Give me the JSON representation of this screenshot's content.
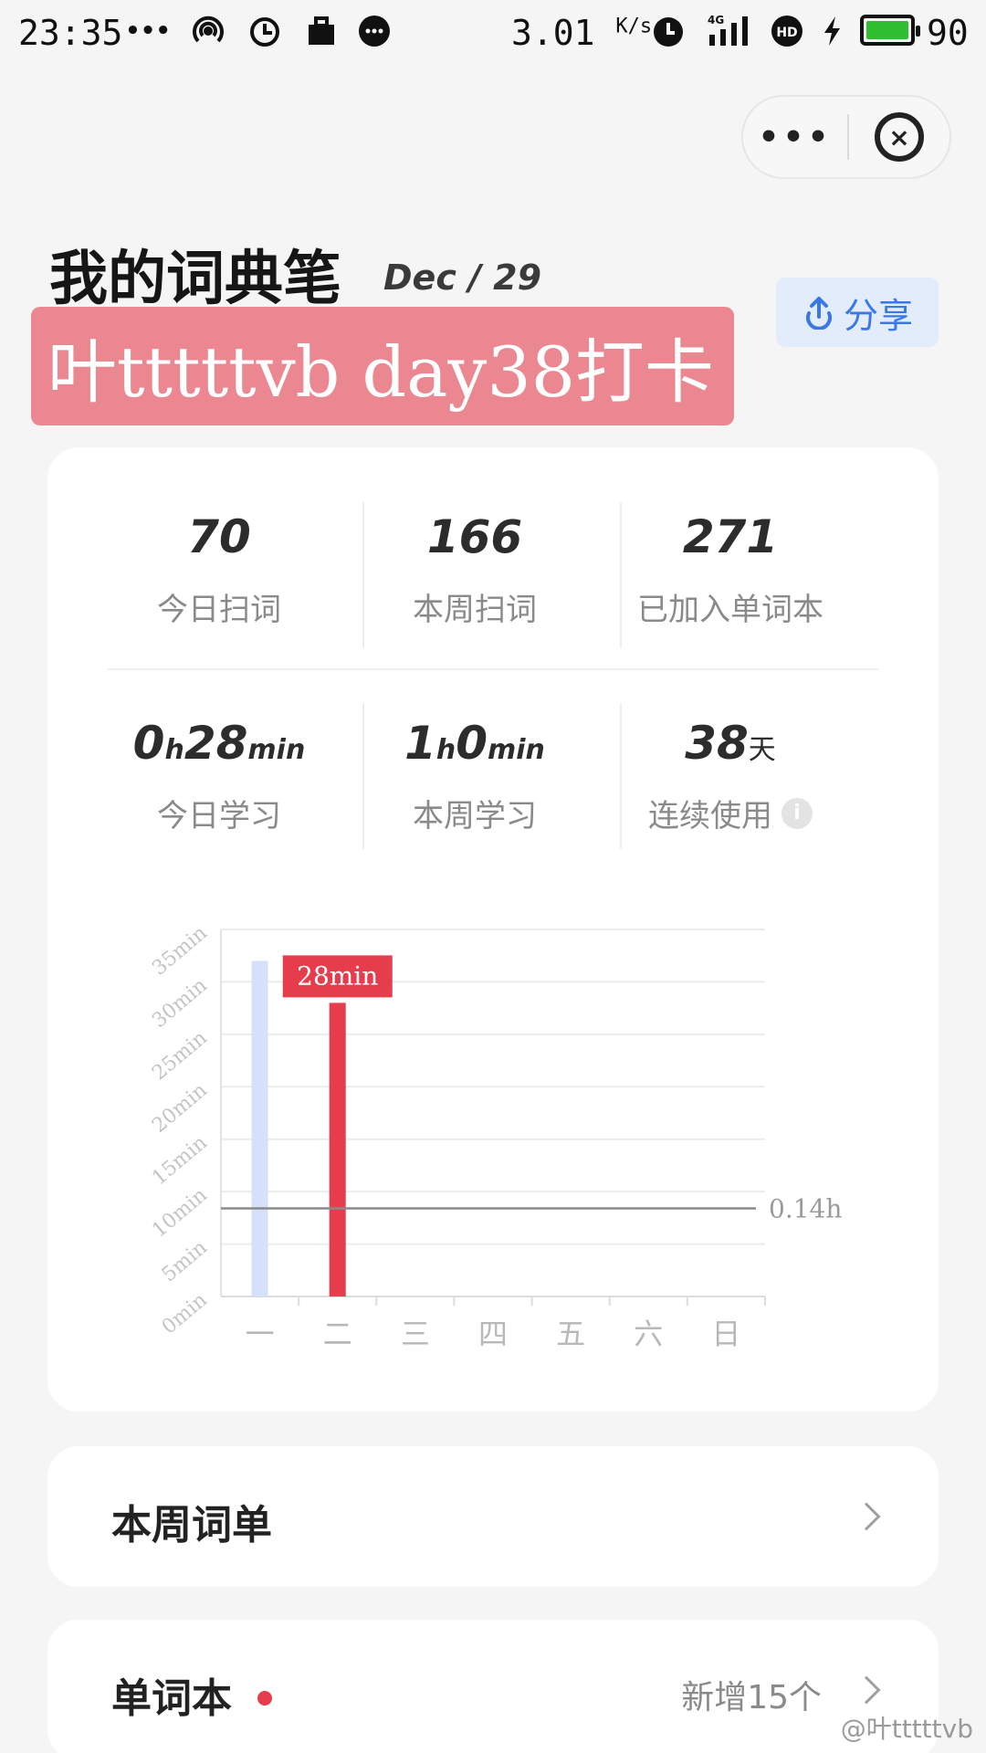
{
  "status_bar": {
    "time": "23:35",
    "dots": "•••",
    "speed": "3.01",
    "speed_unit": "K/s",
    "network": "4G",
    "battery": "90",
    "icons": [
      "hotspot-icon",
      "alarm-clock-icon",
      "briefcase-icon",
      "chat-bubble-icon",
      "alarm-icon",
      "signal-icon",
      "hd-icon",
      "charging-icon",
      "battery-icon"
    ]
  },
  "capsule": {
    "more": "•••",
    "close": "×"
  },
  "header": {
    "title": "我的词典笔",
    "date": "Dec / 29",
    "banner": "叶tttttvb day38打卡",
    "share_label": "分享"
  },
  "stats": [
    {
      "value": "70",
      "label": "今日扫词"
    },
    {
      "value": "166",
      "label": "本周扫词"
    },
    {
      "value": "271",
      "label": "已加入单词本"
    }
  ],
  "time_stats": [
    {
      "h": "0",
      "m": "28",
      "h_unit": "h",
      "m_unit": "min",
      "label": "今日学习"
    },
    {
      "h": "1",
      "m": "0",
      "h_unit": "h",
      "m_unit": "min",
      "label": "本周学习"
    }
  ],
  "streak": {
    "value": "38",
    "unit": "天",
    "label": "连续使用",
    "info": "i"
  },
  "chart_data": {
    "type": "bar",
    "categories": [
      "一",
      "二",
      "三",
      "四",
      "五",
      "六",
      "日"
    ],
    "values": [
      32,
      28,
      0,
      0,
      0,
      0,
      0
    ],
    "colors": [
      "#d5e1fb",
      "#e53d4c",
      "#d5e1fb",
      "#d5e1fb",
      "#d5e1fb",
      "#d5e1fb",
      "#d5e1fb"
    ],
    "yticks": [
      "0min",
      "5min",
      "10min",
      "15min",
      "20min",
      "25min",
      "30min",
      "35min"
    ],
    "ylim": [
      0,
      35
    ],
    "highlight_label": "28min",
    "reference_value": 8.4,
    "reference_label": "0.14h",
    "grid": true
  },
  "rows": {
    "weekly_list": {
      "label": "本周词单"
    },
    "wordbook": {
      "label": "单词本",
      "extra": "新增15个"
    }
  },
  "watermark": "@叶tttttvb"
}
